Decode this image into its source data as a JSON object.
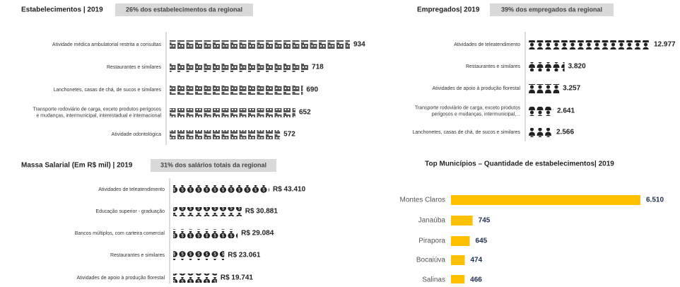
{
  "chart_data": [
    {
      "type": "pictogram",
      "icon": "building",
      "title": "Estabelecimentos | 2019",
      "subtitle": "26% dos estabelecimentos da regional",
      "categories": [
        "Atividade médica ambulatorial restrita a consultas",
        "Restaurantes e similares",
        "Lanchonetes, casas de chá, de sucos e similares",
        "Transporte rodoviário de carga, exceto produtos perigosos\ne mudanças, intermunicipal, interestadual e internacional",
        "Atividade odontológica"
      ],
      "values": [
        934,
        718,
        690,
        652,
        572
      ],
      "color": "#555555"
    },
    {
      "type": "pictogram",
      "icon": "person",
      "title": "Empregados| 2019",
      "subtitle": "39% dos empregados da regional",
      "categories": [
        "Atividades de teleatendimento",
        "Restaurantes e similares",
        "Atividades de apoio à produção florestal",
        "Transporte rodoviário de carga, exceto produtos\nperigosos e mudanças, intermunicipal,...",
        "Lanchonetes, casas de chá, de sucos e similares"
      ],
      "values": [
        12977,
        3820,
        3257,
        2641,
        2566
      ],
      "value_labels": [
        "12.977",
        "3.820",
        "3.257",
        "2.641",
        "2.566"
      ],
      "color": "#222222"
    },
    {
      "type": "pictogram",
      "icon": "bag",
      "title": "Massa Salarial (Em R$ mil) | 2019",
      "subtitle": "31% dos salários totais da regional",
      "categories": [
        "Atividades de teleatendimento",
        "Educação superior - graduação",
        "Bancos múltiplos, com carteira comercial",
        "Restaurantes e similares",
        "Atividades de apoio à produção florestal"
      ],
      "values": [
        43410,
        30881,
        29084,
        23061,
        19741
      ],
      "value_labels": [
        "R$ 43.410",
        "R$ 30.881",
        "R$ 29.084",
        "R$ 23.061",
        "R$ 19.741"
      ],
      "color": "#222222"
    },
    {
      "type": "bar",
      "title": "Top Municípios – Quantidade de estabelecimentos| 2019",
      "categories": [
        "Montes Claros",
        "Janaúba",
        "Pirapora",
        "Bocaiúva",
        "Salinas"
      ],
      "values": [
        6510,
        745,
        645,
        474,
        466
      ],
      "value_labels": [
        "6.510",
        "745",
        "645",
        "474",
        "466"
      ],
      "color": "#ffc000"
    }
  ]
}
